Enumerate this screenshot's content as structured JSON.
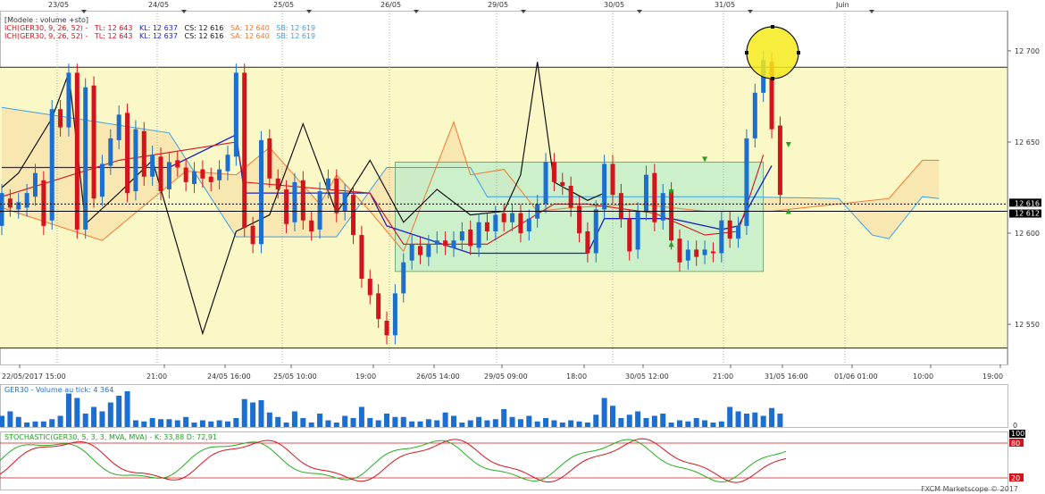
{
  "legend": {
    "model": "[Modele : volume +sto]",
    "ich_prefix": "ICH(GER30, 9, 26, 52) -",
    "tl": "TL: 12 643",
    "kl": "KL: 12 637",
    "cs": "CS: 12 616",
    "sa": "SA: 12 640",
    "sb": "SB: 12 619",
    "ich2_prefix": "ICH(GER30, 9, 26, 52) -",
    "tl2": "TL: 12 643",
    "kl2": "KL: 12 637",
    "cs2": "CS: 12 616",
    "sa2": "SA: 12 640",
    "sb2": "SB: 12 619"
  },
  "volume_label": "GER30 - Volume au tick: 4 364",
  "stoch_label": "STOCHASTIC(GER30, 5, 3, 3, MVA, MVA) - K: 33,88 D: 72,91",
  "footer": "FXCM Marketscope © 2017",
  "colors": {
    "bull": "#1a6fd1",
    "bear": "#d4141c",
    "tenkan": "#d4141c",
    "kijun": "#1a22c4",
    "senkou_a": "#f07830",
    "senkou_b": "#3aa0e8",
    "chikou": "#111111",
    "band": "#fbf8c8",
    "box": "#bfeecb"
  },
  "chart_data": {
    "type": "candlestick",
    "price_axis": {
      "ylim": [
        12528,
        12722
      ],
      "ticks": [
        12550,
        12600,
        12650,
        12700
      ],
      "tick_labels": [
        "12 550",
        "12 600",
        "12 650",
        "12 700"
      ],
      "current_labels": [
        "12 616",
        "12 612"
      ]
    },
    "top_dates": [
      "23/05",
      "24/05",
      "25/05",
      "26/05",
      "29/05",
      "30/05",
      "31/05",
      "Juin"
    ],
    "bottom_labels": [
      "22/05/2017 15:00",
      "21:00",
      "24/05 16:00",
      "25/05 10:00",
      "19:00",
      "26/05 14:00",
      "29/05 09:00",
      "18:00",
      "30/05 12:00",
      "21:00",
      "31/05 16:00",
      "01/06 01:00",
      "10:00",
      "19:00"
    ],
    "horizontal_levels": [
      12691,
      12537
    ],
    "candles": [
      [
        12604,
        12622
      ],
      [
        12619,
        12614
      ],
      [
        12613,
        12617
      ],
      [
        12614,
        12622
      ],
      [
        12620,
        12633
      ],
      [
        12629,
        12604
      ],
      [
        12607,
        12668
      ],
      [
        12668,
        12658
      ],
      [
        12658,
        12688
      ],
      [
        12688,
        12602
      ],
      [
        12602,
        12680
      ],
      [
        12681,
        12619
      ],
      [
        12620,
        12638
      ],
      [
        12637,
        12652
      ],
      [
        12651,
        12665
      ],
      [
        12666,
        12622
      ],
      [
        12623,
        12657
      ],
      [
        12656,
        12631
      ],
      [
        12631,
        12643
      ],
      [
        12642,
        12623
      ],
      [
        12624,
        12639
      ],
      [
        12640,
        12636
      ],
      [
        12636,
        12628
      ],
      [
        12627,
        12634
      ],
      [
        12635,
        12630
      ],
      [
        12631,
        12628
      ],
      [
        12629,
        12635
      ],
      [
        12634,
        12643
      ],
      [
        12642,
        12688
      ],
      [
        12688,
        12603
      ],
      [
        12604,
        12594
      ],
      [
        12594,
        12651
      ],
      [
        12652,
        12630
      ],
      [
        12630,
        12624
      ],
      [
        12624,
        12605
      ],
      [
        12606,
        12628
      ],
      [
        12629,
        12607
      ],
      [
        12607,
        12601
      ],
      [
        12602,
        12623
      ],
      [
        12624,
        12630
      ],
      [
        12630,
        12611
      ],
      [
        12612,
        12622
      ],
      [
        12621,
        12599
      ],
      [
        12599,
        12575
      ],
      [
        12575,
        12566
      ],
      [
        12567,
        12553
      ],
      [
        12552,
        12544
      ],
      [
        12544,
        12567
      ],
      [
        12567,
        12584
      ],
      [
        12585,
        12594
      ],
      [
        12593,
        12588
      ],
      [
        12587,
        12594
      ],
      [
        12594,
        12596
      ],
      [
        12596,
        12593
      ],
      [
        12592,
        12596
      ],
      [
        12596,
        12601
      ],
      [
        12602,
        12593
      ],
      [
        12592,
        12606
      ],
      [
        12606,
        12601
      ],
      [
        12601,
        12610
      ],
      [
        12611,
        12606
      ],
      [
        12606,
        12611
      ],
      [
        12611,
        12600
      ],
      [
        12601,
        12608
      ],
      [
        12608,
        12616
      ],
      [
        12616,
        12639
      ],
      [
        12639,
        12628
      ],
      [
        12628,
        12626
      ],
      [
        12626,
        12614
      ],
      [
        12615,
        12600
      ],
      [
        12601,
        12589
      ],
      [
        12589,
        12613
      ],
      [
        12613,
        12638
      ],
      [
        12638,
        12621
      ],
      [
        12622,
        12608
      ],
      [
        12608,
        12590
      ],
      [
        12591,
        12612
      ],
      [
        12612,
        12632
      ],
      [
        12633,
        12606
      ],
      [
        12607,
        12622
      ],
      [
        12623,
        12596
      ],
      [
        12597,
        12584
      ],
      [
        12585,
        12591
      ],
      [
        12591,
        12587
      ],
      [
        12588,
        12591
      ],
      [
        12590,
        12589
      ],
      [
        12589,
        12607
      ],
      [
        12607,
        12597
      ],
      [
        12597,
        12604
      ],
      [
        12604,
        12652
      ],
      [
        12652,
        12677
      ],
      [
        12677,
        12695
      ],
      [
        12694,
        12657
      ],
      [
        12659,
        12621
      ]
    ],
    "tenkan": [
      [
        0,
        12620
      ],
      [
        14,
        12640
      ],
      [
        28,
        12650
      ],
      [
        29,
        12628
      ],
      [
        44,
        12622
      ],
      [
        48,
        12594
      ],
      [
        58,
        12594
      ],
      [
        66,
        12616
      ],
      [
        70,
        12616
      ],
      [
        78,
        12611
      ],
      [
        84,
        12599
      ],
      [
        88,
        12601
      ],
      [
        91,
        12643
      ]
    ],
    "kijun": [
      [
        0,
        12636
      ],
      [
        20,
        12636
      ],
      [
        28,
        12654
      ],
      [
        29,
        12622
      ],
      [
        44,
        12622
      ],
      [
        46,
        12604
      ],
      [
        56,
        12589
      ],
      [
        70,
        12589
      ],
      [
        72,
        12608
      ],
      [
        80,
        12608
      ],
      [
        86,
        12602
      ],
      [
        88,
        12604
      ],
      [
        92,
        12637
      ]
    ],
    "senkou_a": [
      [
        0,
        12614
      ],
      [
        12,
        12596
      ],
      [
        22,
        12634
      ],
      [
        28,
        12632
      ],
      [
        32,
        12647
      ],
      [
        38,
        12616
      ],
      [
        40,
        12632
      ],
      [
        44,
        12612
      ],
      [
        48,
        12590
      ],
      [
        54,
        12661
      ],
      [
        56,
        12632
      ],
      [
        60,
        12635
      ],
      [
        64,
        12612
      ],
      [
        68,
        12614
      ],
      [
        76,
        12616
      ],
      [
        84,
        12612
      ],
      [
        92,
        12612
      ],
      [
        106,
        12619
      ],
      [
        110,
        12640
      ],
      [
        112,
        12640
      ]
    ],
    "senkou_b": [
      [
        0,
        12669
      ],
      [
        20,
        12655
      ],
      [
        28,
        12598
      ],
      [
        40,
        12598
      ],
      [
        46,
        12636
      ],
      [
        56,
        12636
      ],
      [
        58,
        12620
      ],
      [
        88,
        12620
      ],
      [
        100,
        12619
      ],
      [
        104,
        12599
      ],
      [
        106,
        12597
      ],
      [
        110,
        12620
      ],
      [
        112,
        12619
      ]
    ],
    "chikou": [
      [
        0,
        12625
      ],
      [
        2,
        12633
      ],
      [
        6,
        12663
      ],
      [
        8,
        12688
      ],
      [
        10,
        12605
      ],
      [
        14,
        12622
      ],
      [
        18,
        12640
      ],
      [
        24,
        12545
      ],
      [
        28,
        12601
      ],
      [
        32,
        12610
      ],
      [
        36,
        12660
      ],
      [
        40,
        12611
      ],
      [
        44,
        12640
      ],
      [
        48,
        12606
      ],
      [
        52,
        12624
      ],
      [
        56,
        12610
      ],
      [
        60,
        12612
      ],
      [
        62,
        12632
      ],
      [
        64,
        12694
      ],
      [
        66,
        12628
      ],
      [
        70,
        12618
      ],
      [
        72,
        12622
      ]
    ],
    "consolidation_box": {
      "x": [
        47,
        91
      ],
      "y": [
        12579,
        12639
      ]
    },
    "volume": [
      10,
      14,
      9,
      4,
      5,
      5,
      7,
      10,
      30,
      26,
      12,
      18,
      14,
      22,
      28,
      32,
      6,
      5,
      8,
      7,
      7,
      6,
      9,
      4,
      6,
      5,
      6,
      5,
      8,
      25,
      22,
      24,
      13,
      9,
      4,
      14,
      8,
      4,
      12,
      6,
      4,
      10,
      8,
      18,
      8,
      6,
      12,
      9,
      9,
      5,
      5,
      7,
      6,
      13,
      10,
      4,
      6,
      9,
      6,
      7,
      16,
      9,
      7,
      10,
      5,
      8,
      6,
      4,
      6,
      5,
      4,
      11,
      26,
      19,
      8,
      11,
      14,
      8,
      10,
      12,
      4,
      6,
      5,
      8,
      6,
      4,
      5,
      18,
      14,
      12,
      13,
      10,
      17,
      12
    ],
    "stochastic": {
      "ylim": [
        0,
        100
      ],
      "levels": [
        20,
        80
      ],
      "k_last": 33.88,
      "d_last": 72.91
    }
  }
}
